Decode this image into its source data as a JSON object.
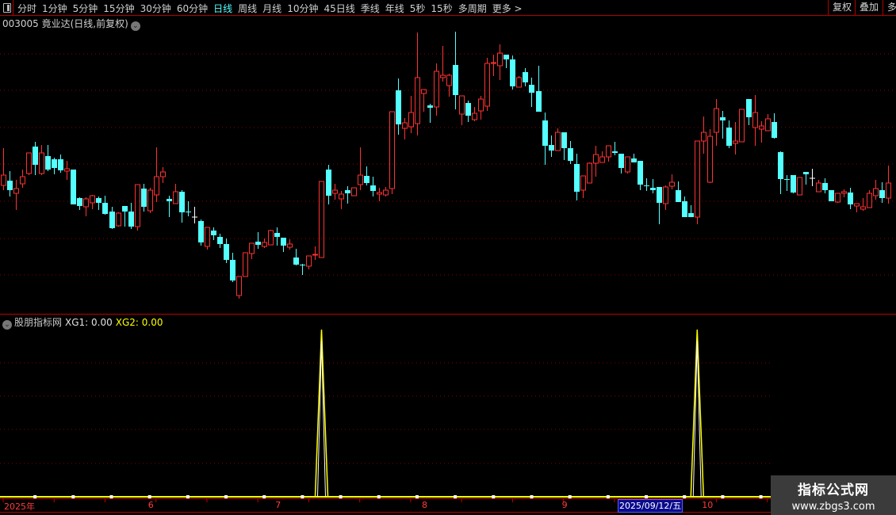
{
  "toolbar": {
    "menu_icon": "panel-toggle-icon",
    "periods": [
      "分时",
      "1分钟",
      "5分钟",
      "15分钟",
      "30分钟",
      "60分钟",
      "日线",
      "周线",
      "月线",
      "10分钟",
      "45日线",
      "季线",
      "年线",
      "5秒",
      "15秒",
      "多周期",
      "更多 >"
    ],
    "active_period": "日线",
    "right_buttons": [
      "复权",
      "叠加",
      "多"
    ]
  },
  "header": {
    "title": "003005 竟业达(日线,前复权)"
  },
  "indicator": {
    "name": "股朋指标网",
    "xg1_label": "XG1: 0.00",
    "xg2_label": "XG2: 0.00"
  },
  "axis": {
    "labels": [
      {
        "text": "2025年",
        "index": 0
      },
      {
        "text": "6",
        "index": 23
      },
      {
        "text": "7",
        "index": 43
      },
      {
        "text": "8",
        "index": 66
      },
      {
        "text": "9",
        "index": 88
      },
      {
        "text": "10",
        "index": 110
      }
    ],
    "highlight_date": "2025/09/12/五"
  },
  "watermark": {
    "line1": "指标公式网",
    "line2": "www.zbgs3.com"
  },
  "colors": {
    "up": "#ff3232",
    "down": "#54ffff",
    "doji": "#ffffff",
    "xg1": "#ffffff",
    "xg2": "#ffff00",
    "grid": "#8a0000"
  },
  "chart_data": {
    "type": "candlestick",
    "title": "003005 竟业达(日线,前复权)",
    "ohlc_format": [
      "open",
      "high",
      "low",
      "close"
    ],
    "candles": [
      [
        16.6,
        21.3,
        16.0,
        17.9
      ],
      [
        17.2,
        18.4,
        15.2,
        16.0
      ],
      [
        15.6,
        17.3,
        13.5,
        16.2
      ],
      [
        16.8,
        18.6,
        16.3,
        17.7
      ],
      [
        18.1,
        20.7,
        17.9,
        20.7
      ],
      [
        21.5,
        22.1,
        17.9,
        19.2
      ],
      [
        18.1,
        21.7,
        17.9,
        20.7
      ],
      [
        20.3,
        21.7,
        18.4,
        18.6
      ],
      [
        19.9,
        20.1,
        18.0,
        18.8
      ],
      [
        19.9,
        20.5,
        18.2,
        18.5
      ],
      [
        18.4,
        19.7,
        17.3,
        18.7
      ],
      [
        18.6,
        18.6,
        14.2,
        14.2
      ],
      [
        15.0,
        15.1,
        13.5,
        14.0
      ],
      [
        13.9,
        15.1,
        12.7,
        14.9
      ],
      [
        14.4,
        15.4,
        13.6,
        15.3
      ],
      [
        15.0,
        15.2,
        13.5,
        14.4
      ],
      [
        14.4,
        15.3,
        12.9,
        13.0
      ],
      [
        13.3,
        13.9,
        11.1,
        11.2
      ],
      [
        11.5,
        13.2,
        11.4,
        13.1
      ],
      [
        14.0,
        14.0,
        11.4,
        13.3
      ],
      [
        13.3,
        14.4,
        11.1,
        11.4
      ],
      [
        11.4,
        16.7,
        10.9,
        16.7
      ],
      [
        16.2,
        16.8,
        13.3,
        13.9
      ],
      [
        13.4,
        16.3,
        13.1,
        16.0
      ],
      [
        15.4,
        21.4,
        14.5,
        17.7
      ],
      [
        17.7,
        18.9,
        16.9,
        18.3
      ],
      [
        14.9,
        15.3,
        12.6,
        14.6
      ],
      [
        14.3,
        16.8,
        14.3,
        15.8
      ],
      [
        15.8,
        16.0,
        11.9,
        13.2
      ],
      [
        13.25,
        14.6,
        12.7,
        13.2
      ],
      [
        12.6,
        13.9,
        11.8,
        12.6
      ],
      [
        12.1,
        12.3,
        9.0,
        9.4
      ],
      [
        8.9,
        11.3,
        8.5,
        11.3
      ],
      [
        10.9,
        11.3,
        9.7,
        10.3
      ],
      [
        10.1,
        10.5,
        8.7,
        9.2
      ],
      [
        9.2,
        9.9,
        6.8,
        7.2
      ],
      [
        7.2,
        8.1,
        4.4,
        4.6
      ],
      [
        2.7,
        5.1,
        2.3,
        5.1
      ],
      [
        5.1,
        8.1,
        5.1,
        8.1
      ],
      [
        8.0,
        9.3,
        7.3,
        9.3
      ],
      [
        9.5,
        10.7,
        8.6,
        9.1
      ],
      [
        8.9,
        9.9,
        8.7,
        9.4
      ],
      [
        9.1,
        11.0,
        9.1,
        10.9
      ],
      [
        10.6,
        11.3,
        9.0,
        10.1
      ],
      [
        10.0,
        10.0,
        8.2,
        9.0
      ],
      [
        8.8,
        9.8,
        8.5,
        9.2
      ],
      [
        7.5,
        8.6,
        6.5,
        6.6
      ],
      [
        6.55,
        6.7,
        5.3,
        6.5
      ],
      [
        6.4,
        7.7,
        6.0,
        7.7
      ],
      [
        7.8,
        8.9,
        7.2,
        7.9
      ],
      [
        7.5,
        17.1,
        7.5,
        17.1
      ],
      [
        18.6,
        19.2,
        14.2,
        15.3
      ],
      [
        15.6,
        16.8,
        14.8,
        16.0
      ],
      [
        14.9,
        15.9,
        13.6,
        15.5
      ],
      [
        16.0,
        16.5,
        14.3,
        15.6
      ],
      [
        15.3,
        16.3,
        15.3,
        16.3
      ],
      [
        16.7,
        21.4,
        16.0,
        17.9
      ],
      [
        17.8,
        19.0,
        16.6,
        16.9
      ],
      [
        16.6,
        17.7,
        15.2,
        15.9
      ],
      [
        15.5,
        16.3,
        14.6,
        15.7
      ],
      [
        15.4,
        16.4,
        15.2,
        16.0
      ],
      [
        16.2,
        25.9,
        15.5,
        25.9
      ],
      [
        28.6,
        30.1,
        23.0,
        24.3
      ],
      [
        23.8,
        25.1,
        22.4,
        24.5
      ],
      [
        24.0,
        27.9,
        23.2,
        25.8
      ],
      [
        24.4,
        35.9,
        22.9,
        30.2
      ],
      [
        28.2,
        28.7,
        25.9,
        28.7
      ],
      [
        26.7,
        26.9,
        24.5,
        26.4
      ],
      [
        26.5,
        32.0,
        25.4,
        31.0
      ],
      [
        30.2,
        34.2,
        29.7,
        30.5
      ],
      [
        29.2,
        30.7,
        27.8,
        30.5
      ],
      [
        31.8,
        36.0,
        26.2,
        28.0
      ],
      [
        25.6,
        27.9,
        24.2,
        27.9
      ],
      [
        27.0,
        27.3,
        24.6,
        25.4
      ],
      [
        24.9,
        26.5,
        24.7,
        25.7
      ],
      [
        26.0,
        27.9,
        24.9,
        27.5
      ],
      [
        26.6,
        32.7,
        26.0,
        32.0
      ],
      [
        32.0,
        33.1,
        30.4,
        32.1
      ],
      [
        31.7,
        34.4,
        29.9,
        33.3
      ],
      [
        33.1,
        33.1,
        31.4,
        32.5
      ],
      [
        32.5,
        33.0,
        28.7,
        29.1
      ],
      [
        29.0,
        30.4,
        29.0,
        30.2
      ],
      [
        30.9,
        31.4,
        29.1,
        29.6
      ],
      [
        29.3,
        30.2,
        26.5,
        28.3
      ],
      [
        28.5,
        31.7,
        25.9,
        25.9
      ],
      [
        24.8,
        25.8,
        19.2,
        21.6
      ],
      [
        21.7,
        22.9,
        20.2,
        21.0
      ],
      [
        21.0,
        23.8,
        21.0,
        23.3
      ],
      [
        23.3,
        23.3,
        19.8,
        21.3
      ],
      [
        21.3,
        22.2,
        19.3,
        19.7
      ],
      [
        19.3,
        20.6,
        14.7,
        15.8
      ],
      [
        16.0,
        17.8,
        15.0,
        17.8
      ],
      [
        16.9,
        19.5,
        16.9,
        19.4
      ],
      [
        19.4,
        21.6,
        17.7,
        20.5
      ],
      [
        19.5,
        20.9,
        19.5,
        20.2
      ],
      [
        20.2,
        21.6,
        19.6,
        21.6
      ],
      [
        20.9,
        22.1,
        20.4,
        20.7
      ],
      [
        20.6,
        20.6,
        18.1,
        18.8
      ],
      [
        18.3,
        20.2,
        18.1,
        20.2
      ],
      [
        20.0,
        20.6,
        19.5,
        19.5
      ],
      [
        19.7,
        19.7,
        16.0,
        16.7
      ],
      [
        16.55,
        17.5,
        15.9,
        16.5
      ],
      [
        16.3,
        17.4,
        15.6,
        16.0
      ],
      [
        16.4,
        16.4,
        11.7,
        14.4
      ],
      [
        14.3,
        16.6,
        13.5,
        16.4
      ],
      [
        16.5,
        18.0,
        16.1,
        17.0
      ],
      [
        16.0,
        17.1,
        14.5,
        14.5
      ],
      [
        14.6,
        15.2,
        12.6,
        12.6
      ],
      [
        13.1,
        14.1,
        12.6,
        12.6
      ],
      [
        12.6,
        22.2,
        11.7,
        22.2
      ],
      [
        22.2,
        25.3,
        20.6,
        23.3
      ],
      [
        17.0,
        23.7,
        16.9,
        22.8
      ],
      [
        23.3,
        27.5,
        21.6,
        26.3
      ],
      [
        25.2,
        26.0,
        22.5,
        24.8
      ],
      [
        23.9,
        24.8,
        21.3,
        21.6
      ],
      [
        21.9,
        24.6,
        20.5,
        22.2
      ],
      [
        22.1,
        26.2,
        22.1,
        26.2
      ],
      [
        27.5,
        27.5,
        24.2,
        25.2
      ],
      [
        23.9,
        28.0,
        21.6,
        25.8
      ],
      [
        23.7,
        24.7,
        22.0,
        24.1
      ],
      [
        23.5,
        25.6,
        23.5,
        25.0
      ],
      [
        24.6,
        25.7,
        22.5,
        22.6
      ],
      [
        20.8,
        20.9,
        15.5,
        17.4
      ],
      [
        17.35,
        17.9,
        15.9,
        17.3
      ],
      [
        17.9,
        17.9,
        15.6,
        15.7
      ],
      [
        15.4,
        17.6,
        15.4,
        17.6
      ],
      [
        18.3,
        18.3,
        16.7,
        18.0
      ],
      [
        17.5,
        18.7,
        16.5,
        17.5
      ],
      [
        15.8,
        17.3,
        15.8,
        16.9
      ],
      [
        16.9,
        17.5,
        15.6,
        16.0
      ],
      [
        16.0,
        16.0,
        14.6,
        14.6
      ],
      [
        14.5,
        15.6,
        14.4,
        15.6
      ],
      [
        15.6,
        16.1,
        15.1,
        15.8
      ],
      [
        15.7,
        16.3,
        13.6,
        14.2
      ],
      [
        14.0,
        14.3,
        13.2,
        14.3
      ],
      [
        13.6,
        15.0,
        13.4,
        13.9
      ],
      [
        13.8,
        16.0,
        13.8,
        15.6
      ],
      [
        15.3,
        17.3,
        14.8,
        16.2
      ],
      [
        16.0,
        17.0,
        14.4,
        15.0
      ],
      [
        15.0,
        19.1,
        14.3,
        16.9
      ]
    ],
    "indicator_series": [
      {
        "name": "XG1",
        "baseline": 0,
        "signal_indices": [
          50,
          109
        ],
        "signal_value": 1
      },
      {
        "name": "XG2",
        "baseline": 0,
        "signal_indices": [
          50,
          109
        ],
        "signal_value": 1
      }
    ],
    "grid": true
  }
}
